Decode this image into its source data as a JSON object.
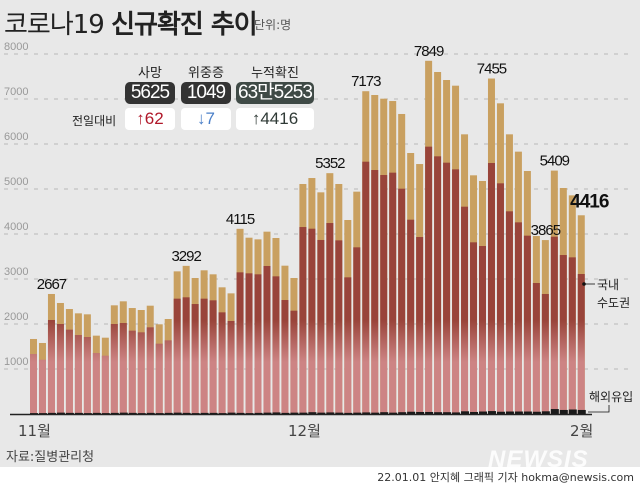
{
  "header": {
    "title_prefix": "코로나19",
    "title_main": "신규확진 추이",
    "unit": "단위:명"
  },
  "stats": {
    "diff_label": "전일대비",
    "items": [
      {
        "label": "사망",
        "value": "5625",
        "diff": "↑62",
        "box_color": "#333333",
        "diff_color": "#b0182a"
      },
      {
        "label": "위중증",
        "value": "1049",
        "diff": "↓7",
        "box_color": "#333333",
        "diff_color": "#4a7fc8"
      },
      {
        "label": "누적확진",
        "value": "63만5253",
        "diff": "↑4416",
        "box_color": "#3f4a46",
        "diff_color": "#2f3a36"
      }
    ]
  },
  "legend": {
    "domestic": "국내",
    "capital": "수도권",
    "overseas": "해외유입"
  },
  "source": "자료:질병관리청",
  "credit": "22.01.01 안지혜 그래픽 기자 hokma@newsis.com",
  "watermark": "NEWSIS",
  "colors": {
    "non_capital": "#c9a060",
    "capital": "#99443a",
    "capital_lower": "#cd8484",
    "overseas": "#1a1a1a"
  },
  "chart_data": {
    "type": "bar",
    "stacked": true,
    "ylim": [
      0,
      8000
    ],
    "yticks": [
      "1000",
      "2000",
      "3000",
      "4000",
      "5000",
      "6000",
      "7000",
      "8000"
    ],
    "grid": true,
    "xtick_labels": [
      {
        "index": 0,
        "label": "11월"
      },
      {
        "index": 30,
        "label": "12월"
      },
      {
        "index": 60,
        "label": "2월"
      }
    ],
    "totals": [
      1667,
      1578,
      2667,
      2467,
      2333,
      2237,
      2215,
      1741,
      1696,
      2415,
      2504,
      2355,
      2311,
      2407,
      1993,
      2111,
      3170,
      3292,
      3022,
      3193,
      3104,
      2815,
      2681,
      4115,
      3918,
      3881,
      4052,
      3911,
      3296,
      3022,
      5111,
      5244,
      4926,
      5352,
      5111,
      4311,
      4941,
      7173,
      7089,
      7007,
      6955,
      6667,
      5800,
      5555,
      7849,
      7600,
      7422,
      7296,
      6215,
      5304,
      5178,
      7455,
      6904,
      6215,
      5830,
      5400,
      3955,
      3865,
      5409,
      5022,
      4859,
      4416
    ],
    "capital_area": [
      1333,
      1207,
      2089,
      2000,
      1874,
      1755,
      1711,
      1355,
      1296,
      2000,
      2022,
      1852,
      1815,
      1926,
      1563,
      1637,
      2563,
      2593,
      2444,
      2563,
      2526,
      2259,
      2067,
      3148,
      3126,
      3104,
      3289,
      3059,
      2533,
      2296,
      4155,
      4118,
      3867,
      4244,
      3859,
      3037,
      3704,
      5607,
      5422,
      5311,
      5363,
      5007,
      4318,
      3933,
      5941,
      5726,
      5585,
      5437,
      4607,
      3815,
      3733,
      5578,
      5126,
      4504,
      4259,
      3963,
      2911,
      2667,
      3940,
      3533,
      3481,
      3111
    ],
    "overseas": [
      20,
      20,
      25,
      30,
      25,
      25,
      20,
      25,
      20,
      25,
      30,
      25,
      20,
      25,
      20,
      25,
      30,
      25,
      20,
      25,
      25,
      20,
      30,
      25,
      20,
      25,
      30,
      35,
      25,
      30,
      30,
      40,
      30,
      35,
      30,
      25,
      30,
      35,
      30,
      40,
      30,
      40,
      50,
      45,
      45,
      40,
      40,
      35,
      60,
      45,
      55,
      65,
      50,
      55,
      55,
      55,
      50,
      60,
      110,
      90,
      100,
      90
    ],
    "data_labels": [
      {
        "index": 2,
        "text": "2667"
      },
      {
        "index": 17,
        "text": "3292"
      },
      {
        "index": 23,
        "text": "4115"
      },
      {
        "index": 33,
        "text": "5352"
      },
      {
        "index": 37,
        "text": "7173"
      },
      {
        "index": 44,
        "text": "7849"
      },
      {
        "index": 51,
        "text": "7455"
      },
      {
        "index": 57,
        "text": "3865"
      },
      {
        "index": 58,
        "text": "5409"
      },
      {
        "index": 61,
        "text": "4416"
      }
    ]
  }
}
